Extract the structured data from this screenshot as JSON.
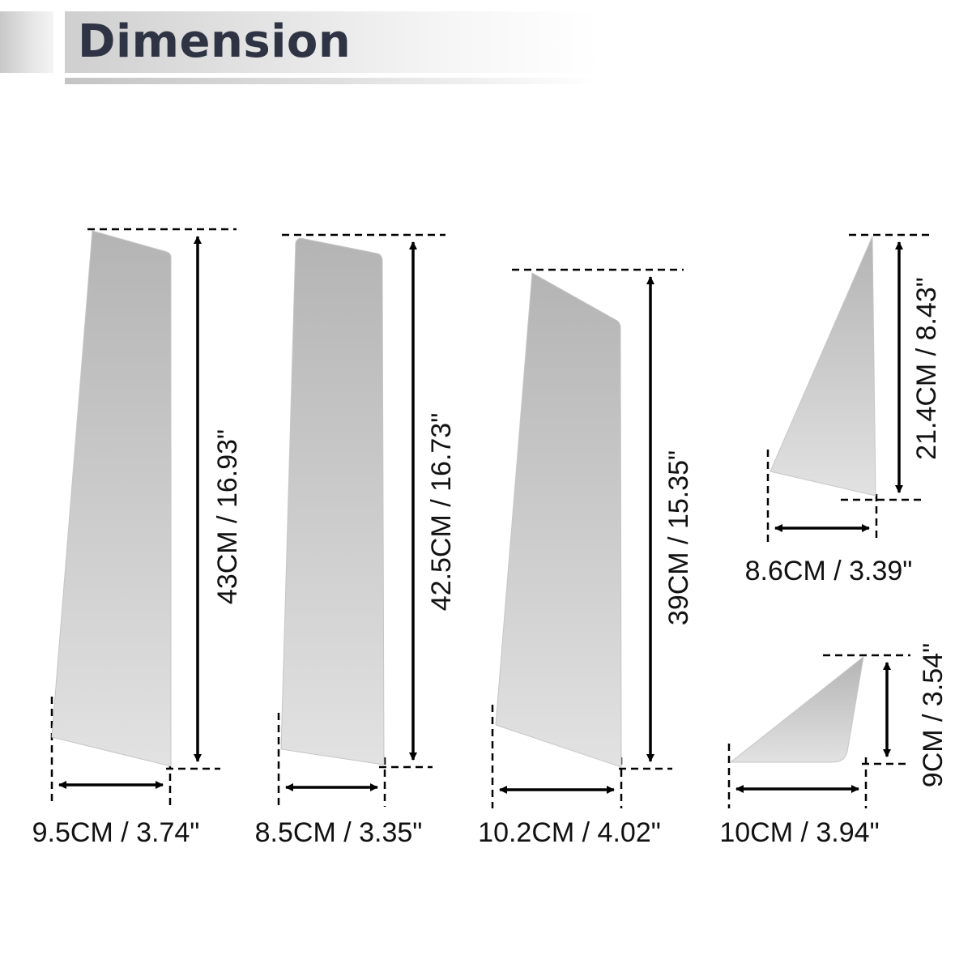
{
  "header": {
    "title": "Dimension"
  },
  "pieces": [
    {
      "width_label": "9.5CM / 3.74\"",
      "height_label": "43CM / 16.93\""
    },
    {
      "width_label": "8.5CM / 3.35\"",
      "height_label": "42.5CM / 16.73\""
    },
    {
      "width_label": "10.2CM / 4.02\"",
      "height_label": "39CM / 15.35\""
    },
    {
      "width_label": "8.6CM / 3.39\"",
      "height_label": "21.4CM / 8.43\""
    },
    {
      "width_label": "10CM / 3.94\"",
      "height_label": "9CM / 3.54\""
    }
  ]
}
